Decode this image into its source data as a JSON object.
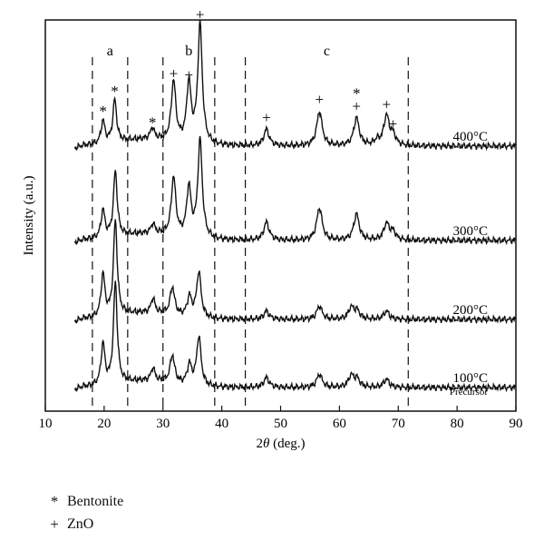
{
  "chart_data": {
    "type": "line",
    "xlabel_prefix": "2",
    "xlabel_theta": "θ",
    "xlabel_suffix": " (deg.)",
    "ylabel": "Intensity (a.u.)",
    "xlim": [
      10,
      90
    ],
    "x_ticks": [
      "10",
      "20",
      "30",
      "40",
      "50",
      "60",
      "70",
      "80",
      "90"
    ],
    "regions": [
      {
        "label": "a",
        "from": 18,
        "to": 24
      },
      {
        "label": "b",
        "from": 30,
        "to": 38.8
      },
      {
        "label": "c",
        "from": 44,
        "to": 71.7
      }
    ],
    "series": [
      {
        "name": "400°C",
        "sublabel": "",
        "peaks": [
          [
            19.8,
            0.14
          ],
          [
            21.8,
            0.26
          ],
          [
            28.2,
            0.07
          ],
          [
            31.8,
            0.37
          ],
          [
            34.4,
            0.36
          ],
          [
            36.3,
            0.73
          ],
          [
            47.6,
            0.1
          ],
          [
            56.6,
            0.21
          ],
          [
            62.9,
            0.17
          ],
          [
            66.4,
            0.03
          ],
          [
            68.0,
            0.18
          ],
          [
            69.1,
            0.06
          ]
        ]
      },
      {
        "name": "300°C",
        "sublabel": "",
        "peaks": [
          [
            19.8,
            0.17
          ],
          [
            21.9,
            0.4
          ],
          [
            28.3,
            0.06
          ],
          [
            31.8,
            0.36
          ],
          [
            34.4,
            0.3
          ],
          [
            36.3,
            0.6
          ],
          [
            47.6,
            0.11
          ],
          [
            56.6,
            0.2
          ],
          [
            62.9,
            0.16
          ],
          [
            68.0,
            0.1
          ],
          [
            69.1,
            0.05
          ]
        ]
      },
      {
        "name": "200°C",
        "sublabel": "",
        "peaks": [
          [
            19.8,
            0.26
          ],
          [
            21.9,
            0.58
          ],
          [
            28.3,
            0.09
          ],
          [
            31.6,
            0.17
          ],
          [
            34.5,
            0.12
          ],
          [
            36.1,
            0.28
          ],
          [
            47.6,
            0.05
          ],
          [
            56.6,
            0.08
          ],
          [
            62.0,
            0.07
          ],
          [
            63.0,
            0.05
          ],
          [
            68.0,
            0.05
          ]
        ]
      },
      {
        "name": "100°C",
        "sublabel": "Precursor",
        "peaks": [
          [
            19.8,
            0.25
          ],
          [
            21.9,
            0.62
          ],
          [
            28.3,
            0.08
          ],
          [
            31.6,
            0.17
          ],
          [
            34.5,
            0.12
          ],
          [
            36.1,
            0.3
          ],
          [
            47.6,
            0.06
          ],
          [
            56.6,
            0.08
          ],
          [
            62.0,
            0.07
          ],
          [
            63.0,
            0.05
          ],
          [
            68.0,
            0.05
          ]
        ]
      }
    ],
    "markers": [
      {
        "symbol": "*",
        "x": 19.8,
        "series": "400°C"
      },
      {
        "symbol": "*",
        "x": 21.8,
        "series": "400°C"
      },
      {
        "symbol": "*",
        "x": 28.2,
        "series": "400°C"
      },
      {
        "symbol": "+",
        "x": 31.8,
        "series": "400°C"
      },
      {
        "symbol": "+",
        "x": 34.4,
        "series": "400°C"
      },
      {
        "symbol": "+",
        "x": 36.3,
        "series": "400°C"
      },
      {
        "symbol": "+",
        "x": 47.6,
        "series": "400°C"
      },
      {
        "symbol": "+",
        "x": 56.6,
        "series": "400°C"
      },
      {
        "symbol": "+",
        "x": 62.9,
        "series": "400°C"
      },
      {
        "symbol": "*",
        "x": 62.9,
        "series": "400°C"
      },
      {
        "symbol": "+",
        "x": 68.0,
        "series": "400°C"
      },
      {
        "symbol": "+",
        "x": 69.1,
        "series": "400°C"
      }
    ],
    "legend": [
      {
        "symbol": "*",
        "label": "Bentonite"
      },
      {
        "symbol": "+",
        "label": "ZnO"
      }
    ]
  }
}
